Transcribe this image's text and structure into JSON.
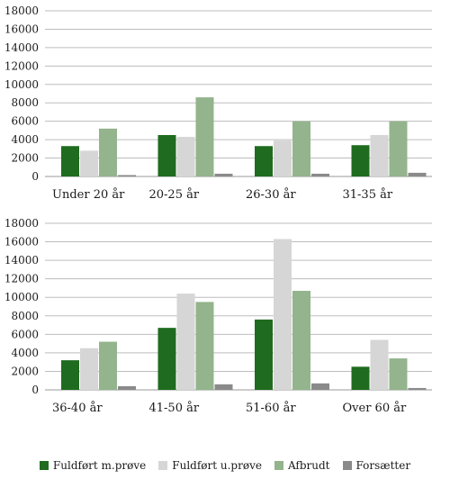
{
  "chart_data": [
    {
      "type": "bar",
      "categories": [
        "Under 20 år",
        "20-25 år",
        "26-30 år",
        "31-35 år"
      ],
      "ylim": [
        0,
        18000
      ],
      "yticks": [
        "0",
        "2000",
        "4000",
        "6000",
        "8000",
        "10000",
        "12000",
        "14000",
        "16000",
        "18000"
      ],
      "grid": true,
      "series": [
        {
          "name": "Fuldført m.prøve",
          "values": [
            3300,
            4500,
            3300,
            3400
          ]
        },
        {
          "name": "Fuldført u.prøve",
          "values": [
            2800,
            4300,
            3900,
            4500
          ]
        },
        {
          "name": "Afbrudt",
          "values": [
            5200,
            8600,
            6000,
            6000
          ]
        },
        {
          "name": "Forsætter",
          "values": [
            150,
            300,
            300,
            400
          ]
        }
      ]
    },
    {
      "type": "bar",
      "categories": [
        "36-40 år",
        "41-50 år",
        "51-60 år",
        "Over 60 år"
      ],
      "ylim": [
        0,
        18000
      ],
      "yticks": [
        "0",
        "2000",
        "4000",
        "6000",
        "8000",
        "10000",
        "12000",
        "14000",
        "16000",
        "18000"
      ],
      "grid": true,
      "series": [
        {
          "name": "Fuldført m.prøve",
          "values": [
            3200,
            6700,
            7600,
            2500
          ]
        },
        {
          "name": "Fuldført u.prøve",
          "values": [
            4500,
            10400,
            16300,
            5400
          ]
        },
        {
          "name": "Afbrudt",
          "values": [
            5200,
            9500,
            10700,
            3400
          ]
        },
        {
          "name": "Forsætter",
          "values": [
            400,
            600,
            700,
            200
          ]
        }
      ]
    }
  ],
  "legend": {
    "placement": "bottom",
    "items": [
      {
        "label": "Fuldført m.prøve",
        "color": "#1f6b1f"
      },
      {
        "label": "Fuldført u.prøve",
        "color": "#d6d6d6"
      },
      {
        "label": "Afbrudt",
        "color": "#93b48c"
      },
      {
        "label": "Forsætter",
        "color": "#8a8a8a"
      }
    ]
  }
}
